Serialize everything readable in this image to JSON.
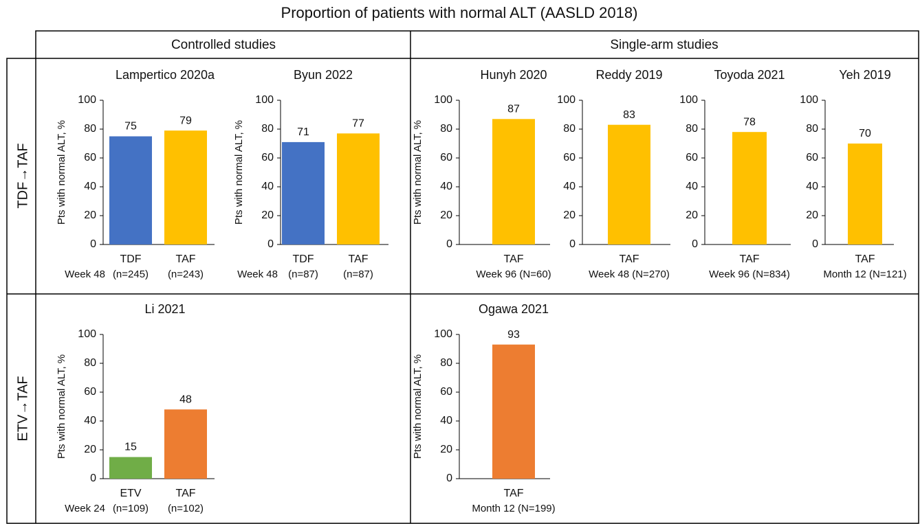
{
  "title": "Proportion of patients with normal ALT (AASLD 2018)",
  "column_headers": [
    "Controlled studies",
    "Single-arm studies"
  ],
  "row_labels": [
    "TDF→TAF",
    "ETV→TAF"
  ],
  "chart_data": [
    {
      "type": "bar",
      "title": "Lampertico 2020a",
      "ylabel": "Pts with normal ALT, %",
      "categories": [
        "TDF",
        "TAF"
      ],
      "sample_sizes": [
        "(n=245)",
        "(n=243)"
      ],
      "timepoint": "Week 48",
      "values": [
        75,
        79
      ],
      "colors": [
        "#4472c4",
        "#ffc000"
      ],
      "ylim": [
        0,
        100
      ],
      "yticks": [
        0,
        20,
        40,
        60,
        80,
        100
      ]
    },
    {
      "type": "bar",
      "title": "Byun 2022",
      "ylabel": "Pts with normal ALT, %",
      "categories": [
        "TDF",
        "TAF"
      ],
      "sample_sizes": [
        "(n=87)",
        "(n=87)"
      ],
      "timepoint": "Week 48",
      "values": [
        71,
        77
      ],
      "colors": [
        "#4472c4",
        "#ffc000"
      ],
      "ylim": [
        0,
        100
      ],
      "yticks": [
        0,
        20,
        40,
        60,
        80,
        100
      ]
    },
    {
      "type": "bar",
      "title": "Hunyh 2020",
      "ylabel": "Pts with normal ALT, %",
      "categories": [
        "TAF"
      ],
      "footnote": "Week 96 (N=60)",
      "values": [
        87
      ],
      "colors": [
        "#ffc000"
      ],
      "ylim": [
        0,
        100
      ],
      "yticks": [
        0,
        20,
        40,
        60,
        80,
        100
      ]
    },
    {
      "type": "bar",
      "title": "Reddy 2019",
      "categories": [
        "TAF"
      ],
      "footnote": "Week 48 (N=270)",
      "values": [
        83
      ],
      "colors": [
        "#ffc000"
      ],
      "ylim": [
        0,
        100
      ],
      "yticks": [
        0,
        20,
        40,
        60,
        80,
        100
      ]
    },
    {
      "type": "bar",
      "title": "Toyoda 2021",
      "categories": [
        "TAF"
      ],
      "footnote": "Week 96 (N=834)",
      "values": [
        78
      ],
      "colors": [
        "#ffc000"
      ],
      "ylim": [
        0,
        100
      ],
      "yticks": [
        0,
        20,
        40,
        60,
        80,
        100
      ]
    },
    {
      "type": "bar",
      "title": "Yeh 2019",
      "categories": [
        "TAF"
      ],
      "footnote": "Month 12 (N=121)",
      "values": [
        70
      ],
      "colors": [
        "#ffc000"
      ],
      "ylim": [
        0,
        100
      ],
      "yticks": [
        0,
        20,
        40,
        60,
        80,
        100
      ]
    },
    {
      "type": "bar",
      "title": "Li 2021",
      "ylabel": "Pts with normal ALT, %",
      "categories": [
        "ETV",
        "TAF"
      ],
      "sample_sizes": [
        "(n=109)",
        "(n=102)"
      ],
      "timepoint": "Week 24",
      "values": [
        15,
        48
      ],
      "colors": [
        "#70ad47",
        "#ed7d31"
      ],
      "ylim": [
        0,
        100
      ],
      "yticks": [
        0,
        20,
        40,
        60,
        80,
        100
      ]
    },
    {
      "type": "bar",
      "title": "Ogawa 2021",
      "ylabel": "Pts with normal ALT, %",
      "categories": [
        "TAF"
      ],
      "footnote": "Month 12 (N=199)",
      "values": [
        93
      ],
      "colors": [
        "#ed7d31"
      ],
      "ylim": [
        0,
        100
      ],
      "yticks": [
        0,
        20,
        40,
        60,
        80,
        100
      ]
    }
  ]
}
